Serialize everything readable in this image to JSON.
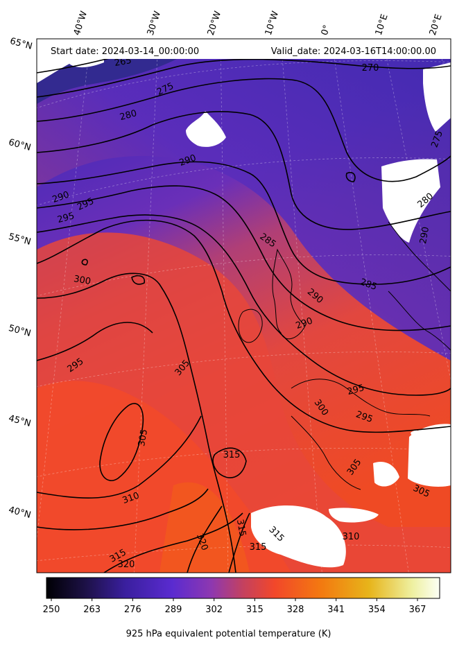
{
  "map": {
    "start_date": "Start date: 2024-03-14_00:00:00",
    "valid_date": "Valid_date: 2024-03-16T14:00:00.00",
    "longitude_labels": [
      "40°W",
      "30°W",
      "20°W",
      "10°W",
      "0°",
      "10°E",
      "20°E"
    ],
    "latitude_labels": [
      "65°N",
      "60°N",
      "55°N",
      "50°N",
      "45°N",
      "40°N"
    ],
    "contour_labels": [
      "265",
      "270",
      "275",
      "280",
      "285",
      "290",
      "295",
      "300",
      "305",
      "310",
      "315",
      "320"
    ],
    "colormap": [
      "#000004",
      "#1d1147",
      "#3a1f9e",
      "#5a2bd0",
      "#8e38b0",
      "#c4415f",
      "#f2472a",
      "#f37a10",
      "#e7b41a",
      "#eef0a0",
      "#fcfff5"
    ],
    "land_mask_color": "#ffffff"
  },
  "colorbar": {
    "ticks": [
      "250",
      "263",
      "276",
      "289",
      "302",
      "315",
      "328",
      "341",
      "354",
      "367"
    ],
    "label": "925 hPa equivalent potential temperature (K)"
  }
}
